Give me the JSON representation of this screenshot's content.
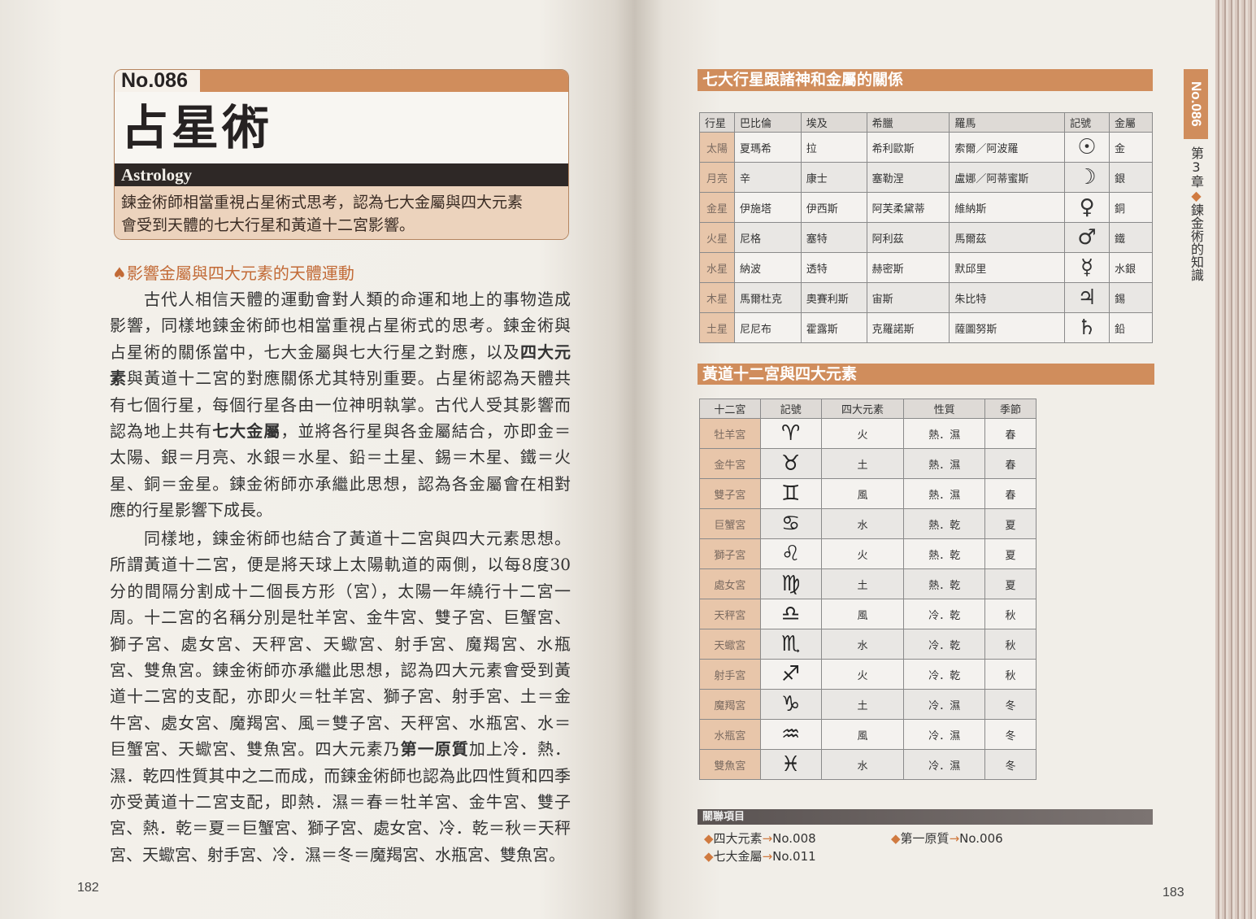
{
  "left_page": {
    "entry_number": "No.086",
    "title": "占星術",
    "english_title": "Astrology",
    "summary": [
      "鍊金術師相當重視占星術式思考，認為七大金屬與四大元素",
      "會受到天體的七大行星和黃道十二宮影響。"
    ],
    "section_heading": "影響金屬與四大元素的天體運動",
    "paragraphs": [
      [
        [
          {
            "t": "古代人相信天體的運動會對人類的命運和地上的事物造成"
          }
        ],
        [
          {
            "t": "影響，同樣地鍊金術師也相當重視占星術式的思考。鍊金術與"
          }
        ],
        [
          {
            "t": "占星術的關係當中，七大金屬與七大行星之對應，以及"
          },
          {
            "t": "四大元",
            "b": true
          }
        ],
        [
          {
            "t": "素",
            "b": true
          },
          {
            "t": "與黃道十二宮的對應關係尤其特別重要。占星術認為天體共"
          }
        ],
        [
          {
            "t": "有七個行星，每個行星各由一位神明執掌。古代人受其影響而"
          }
        ],
        [
          {
            "t": "認為地上共有"
          },
          {
            "t": "七大金屬",
            "b": true
          },
          {
            "t": "，並將各行星與各金屬結合，亦即金＝"
          }
        ],
        [
          {
            "t": "太陽、銀＝月亮、水銀＝水星、鉛＝土星、錫＝木星、鐵＝火"
          }
        ],
        [
          {
            "t": "星、銅＝金星。鍊金術師亦承繼此思想，認為各金屬會在相對"
          }
        ],
        [
          {
            "t": "應的行星影響下成長。"
          }
        ]
      ],
      [
        [
          {
            "t": "同樣地，鍊金術師也結合了黃道十二宮與四大元素思想。"
          }
        ],
        [
          {
            "t": "所謂黃道十二宮，便是將天球上太陽軌道的兩側，以每8度30"
          }
        ],
        [
          {
            "t": "分的間隔分割成十二個長方形（宮），太陽一年繞行十二宮一"
          }
        ],
        [
          {
            "t": "周。十二宮的名稱分別是牡羊宮、金牛宮、雙子宮、巨蟹宮、"
          }
        ],
        [
          {
            "t": "獅子宮、處女宮、天秤宮、天蠍宮、射手宮、魔羯宮、水瓶"
          }
        ],
        [
          {
            "t": "宮、雙魚宮。鍊金術師亦承繼此思想，認為四大元素會受到黃"
          }
        ],
        [
          {
            "t": "道十二宮的支配，亦即火＝牡羊宮、獅子宮、射手宮、土＝金"
          }
        ],
        [
          {
            "t": "牛宮、處女宮、魔羯宮、風＝雙子宮、天秤宮、水瓶宮、水＝"
          }
        ],
        [
          {
            "t": "巨蟹宮、天蠍宮、雙魚宮。四大元素乃"
          },
          {
            "t": "第一原質",
            "b": true
          },
          {
            "t": "加上冷．熱．"
          }
        ],
        [
          {
            "t": "濕．乾四性質其中之二而成，而鍊金術師也認為此四性質和四季"
          }
        ],
        [
          {
            "t": "亦受黃道十二宮支配，即熱．濕＝春＝牡羊宮、金牛宮、雙子"
          }
        ],
        [
          {
            "t": "宮、熱．乾＝夏＝巨蟹宮、獅子宮、處女宮、冷．乾＝秋＝天秤"
          }
        ],
        [
          {
            "t": "宮、天蠍宮、射手宮、冷．濕＝冬＝魔羯宮、水瓶宮、雙魚宮。"
          }
        ]
      ]
    ],
    "page_number": "182"
  },
  "right_page": {
    "planets_table": {
      "heading": "七大行星跟諸神和金屬的關係",
      "columns": [
        "行星",
        "巴比倫",
        "埃及",
        "希臘",
        "羅馬",
        "記號",
        "金屬"
      ],
      "rows": [
        [
          "太陽",
          "夏瑪希",
          "拉",
          "希利歐斯",
          "索爾／阿波羅",
          "☉",
          "金"
        ],
        [
          "月亮",
          "辛",
          "康士",
          "塞勒涅",
          "盧娜／阿蒂蜜斯",
          "☽",
          "銀"
        ],
        [
          "金星",
          "伊施塔",
          "伊西斯",
          "阿芙柔黛蒂",
          "維納斯",
          "♀",
          "銅"
        ],
        [
          "火星",
          "尼格",
          "塞特",
          "阿利茲",
          "馬爾茲",
          "♂",
          "鐵"
        ],
        [
          "水星",
          "納波",
          "透特",
          "赫密斯",
          "默邱里",
          "☿",
          "水銀"
        ],
        [
          "木星",
          "馬爾杜克",
          "奧賽利斯",
          "宙斯",
          "朱比特",
          "♃",
          "錫"
        ],
        [
          "土星",
          "尼尼布",
          "霍露斯",
          "克羅諾斯",
          "薩圖努斯",
          "♄",
          "鉛"
        ]
      ]
    },
    "zodiac_table": {
      "heading": "黃道十二宮與四大元素",
      "columns": [
        "十二宮",
        "記號",
        "四大元素",
        "性質",
        "季節"
      ],
      "rows": [
        [
          "牡羊宮",
          "♈",
          "火",
          "熱．濕",
          "春"
        ],
        [
          "金牛宮",
          "♉",
          "土",
          "熱．濕",
          "春"
        ],
        [
          "雙子宮",
          "♊",
          "風",
          "熱．濕",
          "春"
        ],
        [
          "巨蟹宮",
          "♋",
          "水",
          "熱．乾",
          "夏"
        ],
        [
          "獅子宮",
          "♌",
          "火",
          "熱．乾",
          "夏"
        ],
        [
          "處女宮",
          "♍",
          "土",
          "熱．乾",
          "夏"
        ],
        [
          "天秤宮",
          "♎",
          "風",
          "冷．乾",
          "秋"
        ],
        [
          "天蠍宮",
          "♏",
          "水",
          "冷．乾",
          "秋"
        ],
        [
          "射手宮",
          "♐",
          "火",
          "冷．乾",
          "秋"
        ],
        [
          "魔羯宮",
          "♑",
          "土",
          "冷．濕",
          "冬"
        ],
        [
          "水瓶宮",
          "♒",
          "風",
          "冷．濕",
          "冬"
        ],
        [
          "雙魚宮",
          "♓",
          "水",
          "冷．濕",
          "冬"
        ]
      ]
    },
    "related": {
      "heading": "關聯項目",
      "items": [
        {
          "label": "四大元素",
          "ref": "No.008"
        },
        {
          "label": "第一原質",
          "ref": "No.006"
        },
        {
          "label": "七大金屬",
          "ref": "No.011"
        }
      ]
    },
    "side_tab": {
      "entry_number": "No.086",
      "chapter": "第3章",
      "chapter_title": "鍊金術的知識"
    },
    "page_number": "183"
  },
  "colors": {
    "accent": "#d08d5c",
    "dark_band": "#2e2826",
    "summary_bg": "#ecd3bd",
    "row_head": "#e8c6aa"
  }
}
